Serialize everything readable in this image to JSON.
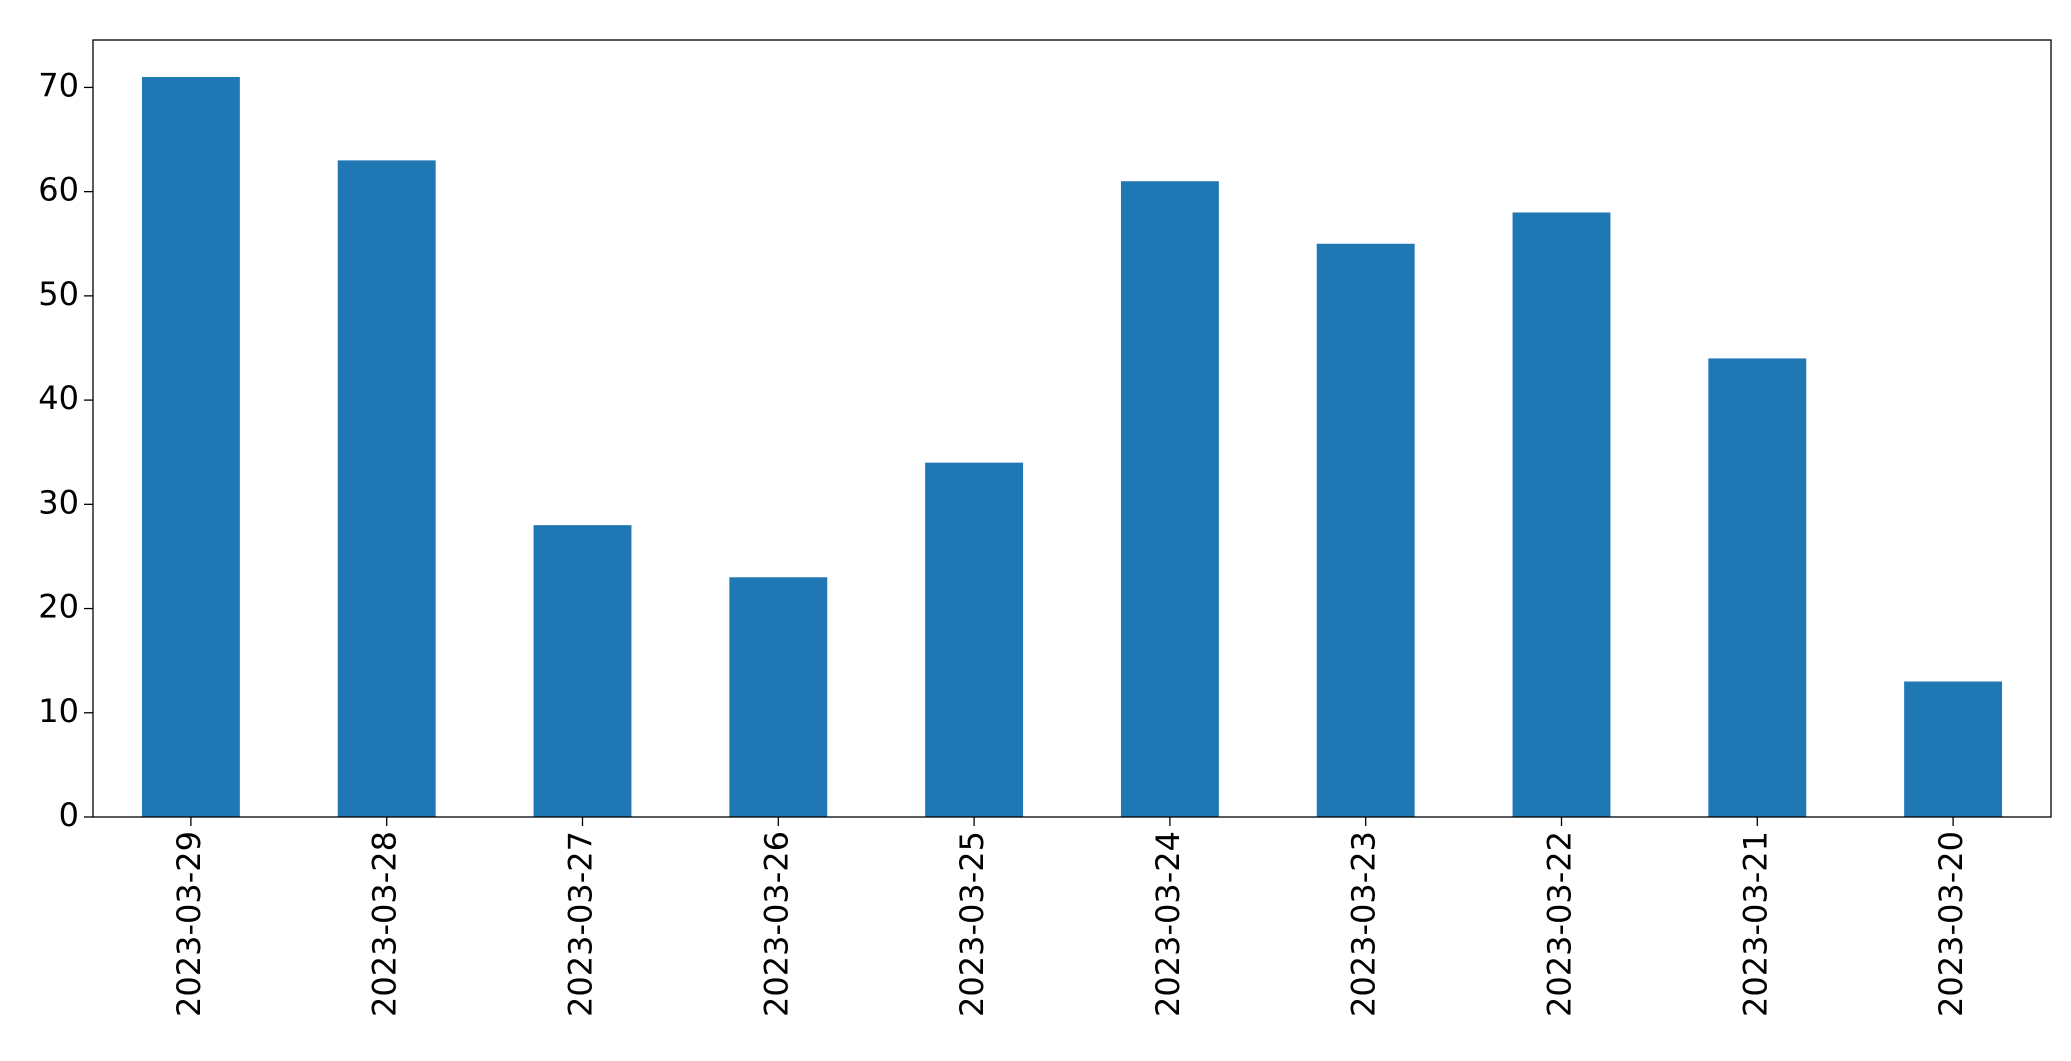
{
  "chart_data": {
    "type": "bar",
    "categories": [
      "2023-03-29",
      "2023-03-28",
      "2023-03-27",
      "2023-03-26",
      "2023-03-25",
      "2023-03-24",
      "2023-03-23",
      "2023-03-22",
      "2023-03-21",
      "2023-03-20"
    ],
    "values": [
      71,
      63,
      28,
      23,
      34,
      61,
      55,
      58,
      44,
      13
    ],
    "color": "#1f77b4",
    "ylim": [
      0,
      74.55
    ],
    "yticks": [
      0,
      10,
      20,
      30,
      40,
      50,
      60,
      70
    ],
    "grid": false
  }
}
